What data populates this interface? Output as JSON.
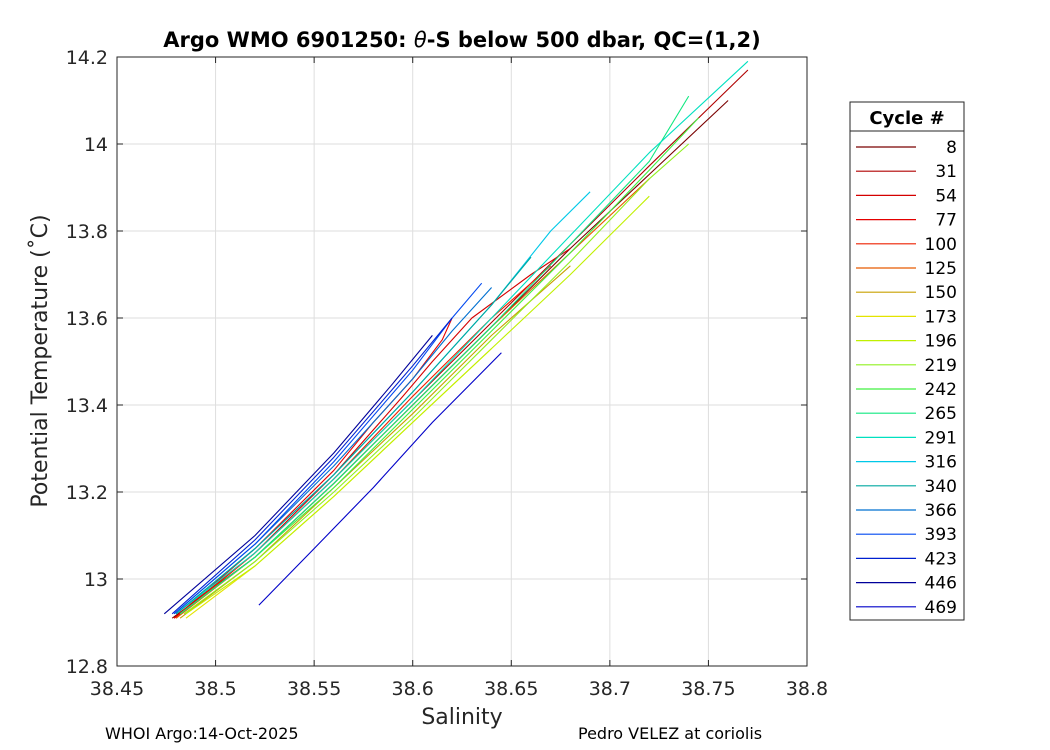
{
  "chart_data": {
    "type": "line",
    "title_prefix": "Argo WMO 6901250: ",
    "title_theta": "θ",
    "title_suffix": "-S below 500 dbar,  QC=(1,2)",
    "xlabel": "Salinity",
    "ylabel": "Potential Temperature (˚C)",
    "xlim": [
      38.45,
      38.8
    ],
    "ylim": [
      12.8,
      14.2
    ],
    "xticks": [
      38.45,
      38.5,
      38.55,
      38.6,
      38.65,
      38.7,
      38.75,
      38.8
    ],
    "xtick_labels": [
      "38.45",
      "38.5",
      "38.55",
      "38.6",
      "38.65",
      "38.7",
      "38.75",
      "38.8"
    ],
    "yticks": [
      12.8,
      13.0,
      13.2,
      13.4,
      13.6,
      13.8,
      14.0,
      14.2
    ],
    "ytick_labels": [
      "12.8",
      "13",
      "13.2",
      "13.4",
      "13.6",
      "13.8",
      "14",
      "14.2"
    ],
    "grid": true,
    "legend_title": "Cycle #",
    "legend_position": "right",
    "series": [
      {
        "name": "8",
        "color": "#7a0000",
        "x": [
          38.478,
          38.52,
          38.56,
          38.6,
          38.64,
          38.68,
          38.72,
          38.76
        ],
        "y": [
          12.91,
          13.05,
          13.22,
          13.4,
          13.58,
          13.76,
          13.93,
          14.1
        ]
      },
      {
        "name": "31",
        "color": "#b00000",
        "x": [
          38.479,
          38.52,
          38.56,
          38.6,
          38.64,
          38.68,
          38.72,
          38.77
        ],
        "y": [
          12.91,
          13.06,
          13.23,
          13.41,
          13.59,
          13.77,
          13.95,
          14.17
        ]
      },
      {
        "name": "54",
        "color": "#d40000",
        "x": [
          38.479,
          38.52,
          38.56,
          38.595,
          38.61,
          38.63,
          38.66,
          38.68
        ],
        "y": [
          12.91,
          13.06,
          13.24,
          13.42,
          13.5,
          13.6,
          13.7,
          13.76
        ]
      },
      {
        "name": "77",
        "color": "#e40000",
        "x": [
          38.479,
          38.52,
          38.56,
          38.58,
          38.6,
          38.615,
          38.62
        ],
        "y": [
          12.91,
          13.07,
          13.25,
          13.36,
          13.46,
          13.55,
          13.6
        ]
      },
      {
        "name": "100",
        "color": "#ee2000",
        "x": [
          38.48,
          38.52,
          38.56,
          38.6,
          38.64,
          38.67
        ],
        "y": [
          12.91,
          13.06,
          13.23,
          13.42,
          13.6,
          13.72
        ]
      },
      {
        "name": "125",
        "color": "#e85a00",
        "x": [
          38.48,
          38.52,
          38.56,
          38.6,
          38.64,
          38.68,
          38.72
        ],
        "y": [
          12.91,
          13.05,
          13.22,
          13.4,
          13.58,
          13.75,
          13.92
        ]
      },
      {
        "name": "150",
        "color": "#c8a000",
        "x": [
          38.482,
          38.52,
          38.56,
          38.6,
          38.64,
          38.68
        ],
        "y": [
          12.91,
          13.04,
          13.21,
          13.38,
          13.56,
          13.72
        ]
      },
      {
        "name": "173",
        "color": "#e4e400",
        "x": [
          38.485,
          38.52,
          38.56,
          38.6,
          38.64
        ],
        "y": [
          12.91,
          13.03,
          13.19,
          13.36,
          13.53
        ]
      },
      {
        "name": "196",
        "color": "#c0f000",
        "x": [
          38.485,
          38.52,
          38.56,
          38.6,
          38.64,
          38.68,
          38.72
        ],
        "y": [
          12.92,
          13.03,
          13.19,
          13.36,
          13.53,
          13.7,
          13.88
        ]
      },
      {
        "name": "219",
        "color": "#90f020",
        "x": [
          38.484,
          38.52,
          38.56,
          38.6,
          38.64,
          38.68,
          38.72,
          38.74
        ],
        "y": [
          12.92,
          13.04,
          13.2,
          13.37,
          13.55,
          13.73,
          13.92,
          14.0
        ]
      },
      {
        "name": "242",
        "color": "#40f040",
        "x": [
          38.482,
          38.52,
          38.56,
          38.6,
          38.64,
          38.68,
          38.72,
          38.745
        ],
        "y": [
          12.92,
          13.05,
          13.21,
          13.39,
          13.57,
          13.75,
          13.94,
          14.06
        ]
      },
      {
        "name": "265",
        "color": "#10e880",
        "x": [
          38.482,
          38.52,
          38.56,
          38.6,
          38.64,
          38.68,
          38.72,
          38.74
        ],
        "y": [
          12.92,
          13.05,
          13.22,
          13.4,
          13.58,
          13.77,
          13.96,
          14.11
        ]
      },
      {
        "name": "291",
        "color": "#00e0c0",
        "x": [
          38.48,
          38.52,
          38.56,
          38.6,
          38.64,
          38.68,
          38.72,
          38.77
        ],
        "y": [
          12.92,
          13.06,
          13.23,
          13.41,
          13.6,
          13.79,
          13.98,
          14.19
        ]
      },
      {
        "name": "316",
        "color": "#00c8e8",
        "x": [
          38.48,
          38.52,
          38.56,
          38.6,
          38.64,
          38.67,
          38.69
        ],
        "y": [
          12.92,
          13.07,
          13.24,
          13.43,
          13.63,
          13.8,
          13.89
        ]
      },
      {
        "name": "340",
        "color": "#00a8a0",
        "x": [
          38.48,
          38.52,
          38.56,
          38.6,
          38.64,
          38.66
        ],
        "y": [
          12.92,
          13.07,
          13.24,
          13.43,
          13.63,
          13.74
        ]
      },
      {
        "name": "366",
        "color": "#0070d0",
        "x": [
          38.479,
          38.52,
          38.56,
          38.6,
          38.62,
          38.64
        ],
        "y": [
          12.92,
          13.08,
          13.26,
          13.46,
          13.57,
          13.67
        ]
      },
      {
        "name": "393",
        "color": "#0048f0",
        "x": [
          38.479,
          38.52,
          38.56,
          38.6,
          38.62,
          38.635
        ],
        "y": [
          12.92,
          13.08,
          13.27,
          13.48,
          13.6,
          13.68
        ]
      },
      {
        "name": "423",
        "color": "#0020d0",
        "x": [
          38.478,
          38.52,
          38.56,
          38.6,
          38.62
        ],
        "y": [
          12.92,
          13.09,
          13.28,
          13.49,
          13.6
        ]
      },
      {
        "name": "446",
        "color": "#00009a",
        "x": [
          38.474,
          38.52,
          38.56,
          38.59,
          38.61
        ],
        "y": [
          12.92,
          13.1,
          13.29,
          13.45,
          13.56
        ]
      },
      {
        "name": "469",
        "color": "#0000c8",
        "x": [
          38.522,
          38.55,
          38.58,
          38.61,
          38.645
        ],
        "y": [
          12.94,
          13.07,
          13.21,
          13.36,
          13.52
        ]
      }
    ]
  },
  "footer": {
    "left": "WHOI Argo:14-Oct-2025",
    "right": "Pedro VELEZ at coriolis"
  }
}
